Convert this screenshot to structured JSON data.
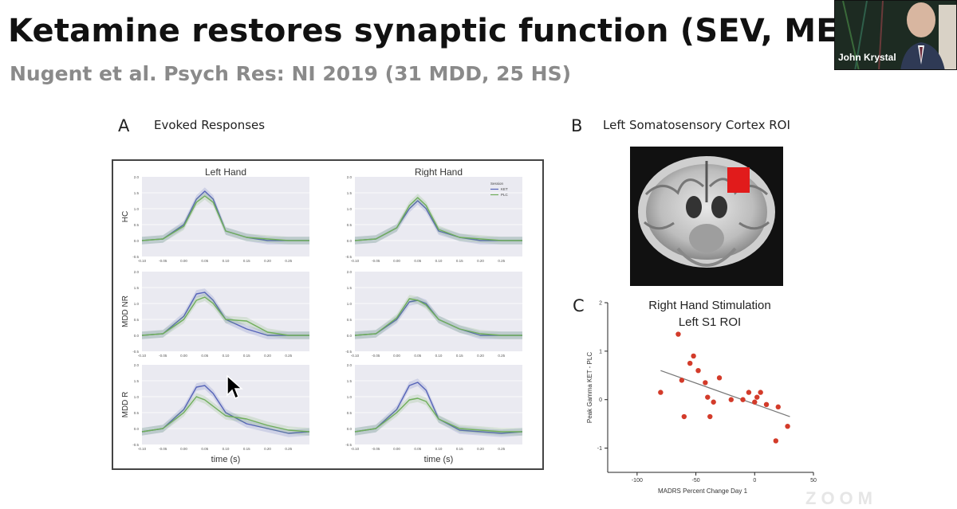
{
  "slide": {
    "title": "Ketamine restores synaptic function (SEV, MEG) in",
    "subtitle": "Nugent et al. Psych Res: NI 2019 (31 MDD, 25 HS)"
  },
  "panel_a": {
    "letter": "A",
    "title": "Evoked Responses",
    "col_titles": [
      "Left Hand",
      "Right Hand"
    ],
    "row_labels": [
      "HC",
      "MDD NR",
      "MDD R"
    ],
    "xlabel": "time (s)",
    "legend_title": "Session",
    "legend_items": [
      "KET",
      "PLC"
    ],
    "yticks": [
      "2.0",
      "1.5",
      "1.0",
      "0.5",
      "0.0",
      "-0.5"
    ],
    "xticks": [
      "-0.10",
      "-0.05",
      "0.00",
      "0.05",
      "0.10",
      "0.15",
      "0.20",
      "0.25"
    ]
  },
  "panel_b": {
    "letter": "B",
    "title": "Left Somatosensory Cortex ROI"
  },
  "panel_c": {
    "letter": "C",
    "title_line1": "Right Hand Stimulation",
    "title_line2": "Left S1 ROI",
    "ylabel": "Peak Gamma KET - PLC",
    "xlabel": "MADRS Percent Change Day 1",
    "xticks": [
      "-100",
      "-50",
      "0",
      "50"
    ],
    "yticks": [
      "2",
      "1",
      "0",
      "-1"
    ]
  },
  "video": {
    "name": "John Krystal"
  },
  "watermark": {
    "text": "ZOOM"
  },
  "chart_data": [
    {
      "type": "line",
      "title": "Left Hand",
      "row": "HC",
      "xlabel": "time (s)",
      "xlim": [
        -0.1,
        0.3
      ],
      "ylim": [
        -0.5,
        2.0
      ],
      "x": [
        -0.1,
        -0.05,
        0.0,
        0.03,
        0.05,
        0.07,
        0.1,
        0.15,
        0.2,
        0.25,
        0.3
      ],
      "series": [
        {
          "name": "KET",
          "values": [
            0.0,
            0.05,
            0.5,
            1.3,
            1.55,
            1.3,
            0.3,
            0.1,
            0.0,
            0.0,
            0.0
          ]
        },
        {
          "name": "PLC",
          "values": [
            0.0,
            0.05,
            0.45,
            1.2,
            1.4,
            1.2,
            0.3,
            0.1,
            0.05,
            0.0,
            0.0
          ]
        }
      ]
    },
    {
      "type": "line",
      "title": "Right Hand",
      "row": "HC",
      "xlabel": "time (s)",
      "xlim": [
        -0.1,
        0.3
      ],
      "ylim": [
        -0.5,
        2.0
      ],
      "x": [
        -0.1,
        -0.05,
        0.0,
        0.03,
        0.05,
        0.07,
        0.1,
        0.15,
        0.2,
        0.25,
        0.3
      ],
      "series": [
        {
          "name": "KET",
          "values": [
            0.0,
            0.05,
            0.4,
            1.0,
            1.25,
            1.0,
            0.3,
            0.1,
            0.0,
            0.0,
            0.0
          ]
        },
        {
          "name": "PLC",
          "values": [
            0.0,
            0.05,
            0.4,
            1.1,
            1.35,
            1.1,
            0.35,
            0.1,
            0.05,
            0.0,
            0.0
          ]
        }
      ]
    },
    {
      "type": "line",
      "title": "Left Hand",
      "row": "MDD NR",
      "xlabel": "time (s)",
      "xlim": [
        -0.1,
        0.3
      ],
      "ylim": [
        -0.5,
        2.0
      ],
      "x": [
        -0.1,
        -0.05,
        0.0,
        0.03,
        0.05,
        0.07,
        0.1,
        0.15,
        0.2,
        0.25,
        0.3
      ],
      "series": [
        {
          "name": "KET",
          "values": [
            0.0,
            0.05,
            0.6,
            1.3,
            1.35,
            1.1,
            0.5,
            0.2,
            0.0,
            0.0,
            0.0
          ]
        },
        {
          "name": "PLC",
          "values": [
            0.0,
            0.05,
            0.5,
            1.1,
            1.2,
            1.0,
            0.5,
            0.45,
            0.1,
            0.0,
            0.0
          ]
        }
      ]
    },
    {
      "type": "line",
      "title": "Right Hand",
      "row": "MDD NR",
      "xlabel": "time (s)",
      "xlim": [
        -0.1,
        0.3
      ],
      "ylim": [
        -0.5,
        2.0
      ],
      "x": [
        -0.1,
        -0.05,
        0.0,
        0.03,
        0.05,
        0.07,
        0.1,
        0.15,
        0.2,
        0.25,
        0.3
      ],
      "series": [
        {
          "name": "KET",
          "values": [
            0.0,
            0.05,
            0.5,
            1.05,
            1.1,
            1.0,
            0.5,
            0.2,
            0.0,
            0.0,
            0.0
          ]
        },
        {
          "name": "PLC",
          "values": [
            0.0,
            0.05,
            0.55,
            1.15,
            1.1,
            0.95,
            0.5,
            0.2,
            0.05,
            0.0,
            0.0
          ]
        }
      ]
    },
    {
      "type": "line",
      "title": "Left Hand",
      "row": "MDD R",
      "xlabel": "time (s)",
      "xlim": [
        -0.1,
        0.3
      ],
      "ylim": [
        -0.5,
        2.0
      ],
      "x": [
        -0.1,
        -0.05,
        0.0,
        0.03,
        0.05,
        0.07,
        0.1,
        0.15,
        0.2,
        0.25,
        0.3
      ],
      "series": [
        {
          "name": "KET",
          "values": [
            -0.1,
            0.0,
            0.6,
            1.3,
            1.35,
            1.1,
            0.5,
            0.15,
            0.0,
            -0.15,
            -0.1
          ]
        },
        {
          "name": "PLC",
          "values": [
            -0.1,
            0.0,
            0.5,
            1.0,
            0.9,
            0.7,
            0.4,
            0.3,
            0.1,
            -0.05,
            -0.1
          ]
        }
      ]
    },
    {
      "type": "line",
      "title": "Right Hand",
      "row": "MDD R",
      "xlabel": "time (s)",
      "xlim": [
        -0.1,
        0.3
      ],
      "ylim": [
        -0.5,
        2.0
      ],
      "x": [
        -0.1,
        -0.05,
        0.0,
        0.03,
        0.05,
        0.07,
        0.1,
        0.15,
        0.2,
        0.25,
        0.3
      ],
      "series": [
        {
          "name": "KET",
          "values": [
            -0.1,
            0.0,
            0.6,
            1.35,
            1.45,
            1.2,
            0.3,
            -0.05,
            -0.1,
            -0.15,
            -0.1
          ]
        },
        {
          "name": "PLC",
          "values": [
            -0.1,
            0.0,
            0.5,
            0.9,
            0.95,
            0.85,
            0.3,
            0.0,
            -0.05,
            -0.1,
            -0.1
          ]
        }
      ]
    },
    {
      "type": "scatter",
      "title": "Right Hand Stimulation Left S1 ROI",
      "xlabel": "MADRS Percent Change Day 1",
      "ylabel": "Peak Gamma KET - PLC",
      "xlim": [
        -125,
        50
      ],
      "ylim": [
        -1.5,
        2
      ],
      "x": [
        -80,
        -65,
        -62,
        -60,
        -55,
        -52,
        -48,
        -42,
        -40,
        -38,
        -35,
        -30,
        -20,
        -10,
        -5,
        0,
        2,
        5,
        10,
        18,
        20,
        28
      ],
      "y": [
        0.15,
        1.35,
        0.4,
        -0.35,
        0.75,
        0.9,
        0.6,
        0.35,
        0.05,
        -0.35,
        -0.05,
        0.45,
        0.0,
        0.0,
        0.15,
        -0.05,
        0.05,
        0.15,
        -0.1,
        -0.85,
        -0.15,
        -0.55
      ],
      "trend": {
        "x": [
          -80,
          30
        ],
        "y": [
          0.6,
          -0.35
        ]
      }
    }
  ]
}
